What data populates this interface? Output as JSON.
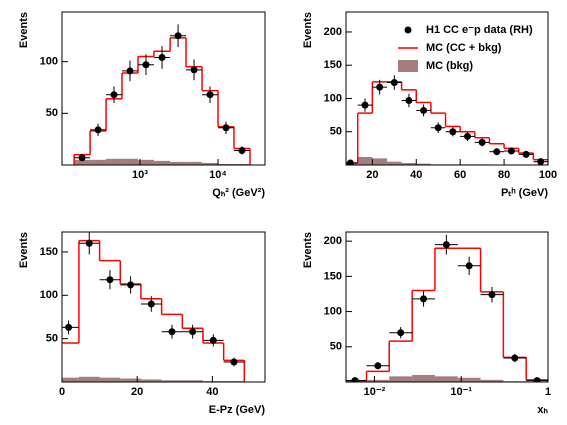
{
  "chart_data": [
    {
      "type": "histogram",
      "xlabel": "Qₕ² (GeV²)",
      "ylabel": "Events",
      "log_x": true,
      "xlim": [
        100,
        40000
      ],
      "xticks": [
        {
          "value": 1000,
          "label": "10³"
        },
        {
          "value": 10000,
          "label": "10⁴"
        }
      ],
      "ylim": [
        0,
        148
      ],
      "yticks": [
        50,
        100
      ],
      "bins": [
        143,
        229,
        367,
        587,
        942,
        1510,
        2430,
        3890,
        6240,
        10000,
        16000,
        25700
      ],
      "series": [
        {
          "color": "#ff0000",
          "values": [
            10,
            33,
            64,
            89,
            105,
            110,
            123,
            95,
            72,
            37,
            16
          ]
        },
        {
          "color": "#a47d7d",
          "values": [
            5,
            5,
            6,
            6,
            5,
            4,
            3,
            3,
            2,
            1,
            1
          ]
        }
      ],
      "points": {
        "color": "#000000",
        "values": [
          7,
          34,
          68,
          91,
          97,
          104,
          125,
          92,
          68,
          36,
          14
        ],
        "errors": [
          3,
          6,
          8,
          10,
          10,
          11,
          11,
          10,
          8,
          6,
          4
        ]
      }
    },
    {
      "type": "histogram",
      "xlabel": "Pₜʰ (GeV)",
      "ylabel": "Events",
      "log_x": false,
      "legend": "top-right",
      "xlim": [
        8,
        100
      ],
      "xticks": [
        20,
        40,
        60,
        80,
        100
      ],
      "ylim": [
        0,
        230
      ],
      "yticks": [
        50,
        100,
        150,
        200
      ],
      "bins": [
        6.67,
        13.33,
        20,
        26.67,
        33.33,
        40,
        46.67,
        53.33,
        60,
        66.67,
        73.33,
        80,
        86.67,
        93.33,
        100
      ],
      "series": [
        {
          "name": "MC (CC + bkg)",
          "color": "#ff0000",
          "values": [
            3,
            78,
            125,
            125,
            113,
            94,
            78,
            58,
            50,
            41,
            32,
            25,
            18,
            8
          ]
        },
        {
          "name": "MC (bkg)",
          "color": "#a47d7d",
          "values": [
            2,
            12,
            10,
            5,
            3,
            2,
            1,
            1,
            1,
            1,
            0,
            0,
            0,
            0
          ]
        }
      ],
      "points": {
        "name": "H1 CC e⁻p data (RH)",
        "color": "#000000",
        "values": [
          3,
          90,
          117,
          124,
          97,
          82,
          56,
          50,
          43,
          34,
          20,
          21,
          16,
          5
        ],
        "errors": [
          2,
          10,
          11,
          11,
          10,
          9,
          8,
          7,
          7,
          6,
          5,
          5,
          4,
          2
        ]
      }
    },
    {
      "type": "histogram",
      "xlabel": "E-Pz (GeV)",
      "ylabel": "Events",
      "log_x": false,
      "xlim": [
        0,
        54
      ],
      "xticks": [
        0,
        20,
        40
      ],
      "ylim": [
        0,
        173
      ],
      "yticks": [
        50,
        100,
        150
      ],
      "bins": [
        -1,
        4.5,
        10,
        15.5,
        21,
        26.5,
        32,
        37.5,
        43,
        48.5
      ],
      "series": [
        {
          "color": "#ff0000",
          "values": [
            45,
            163,
            140,
            113,
            96,
            78,
            62,
            45,
            25
          ]
        },
        {
          "color": "#a47d7d",
          "values": [
            5,
            6,
            5,
            4,
            3,
            2,
            2,
            1,
            1
          ]
        }
      ],
      "points": {
        "color": "#000000",
        "values": [
          63,
          160,
          118,
          112,
          90,
          58,
          58,
          48,
          23
        ],
        "errors": [
          8,
          13,
          11,
          10,
          9,
          8,
          8,
          7,
          5
        ]
      }
    },
    {
      "type": "histogram",
      "xlabel": "xₕ",
      "ylabel": "Events",
      "log_x": true,
      "xlim": [
        0.0047,
        1
      ],
      "xticks": [
        {
          "value": 0.01,
          "label": "10⁻²"
        },
        {
          "value": 0.1,
          "label": "10⁻¹"
        },
        1
      ],
      "ylim": [
        0,
        213
      ],
      "yticks": [
        50,
        100,
        150,
        200
      ],
      "bins": [
        0.0044,
        0.0081,
        0.0148,
        0.0272,
        0.0498,
        0.0912,
        0.167,
        0.306,
        0.561,
        1
      ],
      "series": [
        {
          "color": "#ff0000",
          "values": [
            2,
            15,
            58,
            130,
            190,
            190,
            128,
            35,
            3
          ]
        },
        {
          "color": "#a47d7d",
          "values": [
            0,
            3,
            8,
            10,
            8,
            6,
            3,
            1,
            0
          ]
        }
      ],
      "points": {
        "color": "#000000",
        "values": [
          2,
          23,
          70,
          118,
          195,
          165,
          124,
          34,
          2
        ],
        "errors": [
          2,
          5,
          8,
          11,
          14,
          13,
          11,
          6,
          2
        ]
      }
    }
  ]
}
